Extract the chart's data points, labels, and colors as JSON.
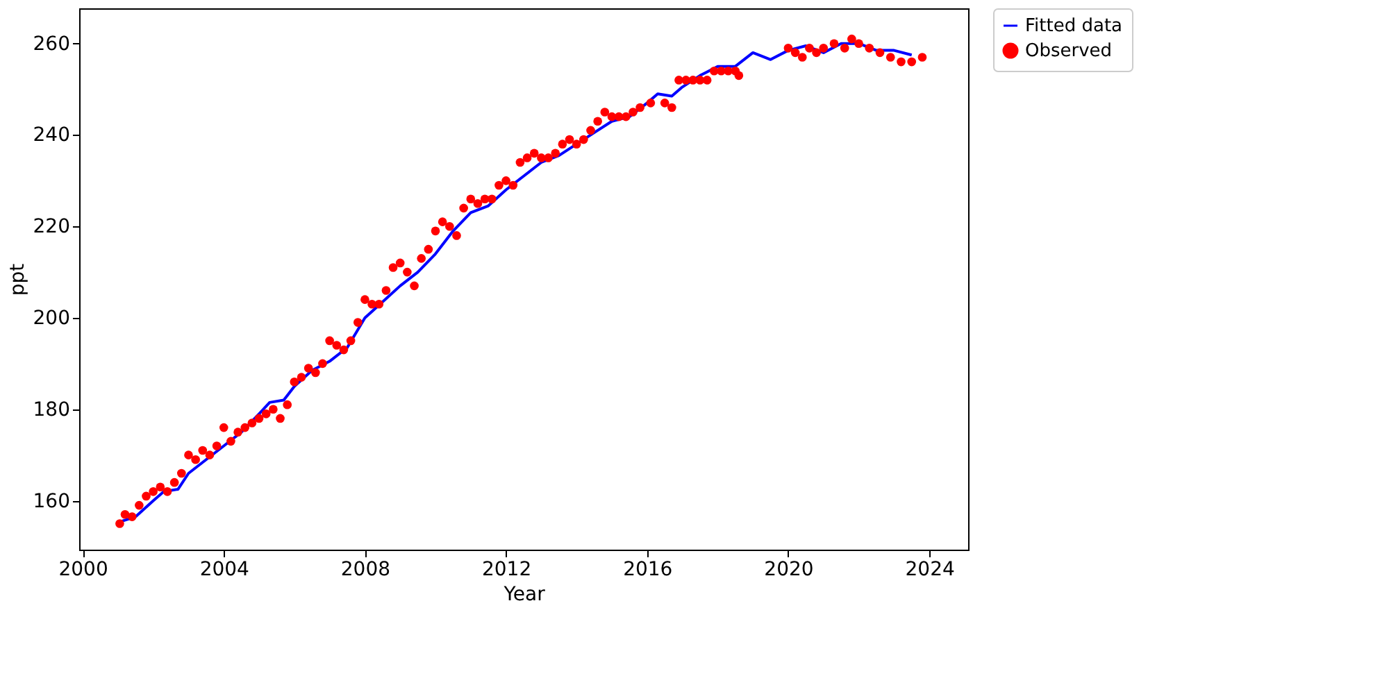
{
  "chart_data": {
    "type": "scatter",
    "xlabel": "Year",
    "ylabel": "ppt",
    "xlim": [
      1999.9,
      2025.1
    ],
    "xticks": [
      2000,
      2004,
      2008,
      2012,
      2016,
      2020,
      2024
    ],
    "ylim": [
      149.3,
      267.7
    ],
    "yticks": [
      160,
      180,
      200,
      220,
      240,
      260
    ],
    "grid": false,
    "legend": "top right",
    "marker": "circle",
    "series": [
      {
        "name": "Fitted data",
        "type": "line",
        "color": "#0000ff",
        "marker": "none",
        "line_style": "solid",
        "x": [
          2001.1,
          2001.5,
          2002,
          2002.3,
          2002.7,
          2003,
          2003.5,
          2004,
          2004.5,
          2005,
          2005.3,
          2005.7,
          2006,
          2006.5,
          2007,
          2007.5,
          2008,
          2008.5,
          2009,
          2009.5,
          2010,
          2010.5,
          2011,
          2011.5,
          2012,
          2012.5,
          2013,
          2013.5,
          2014,
          2014.5,
          2015,
          2015.5,
          2016,
          2016.3,
          2016.7,
          2017,
          2017.5,
          2018,
          2018.5,
          2019,
          2019.5,
          2020,
          2020.5,
          2021,
          2021.5,
          2022,
          2022.5,
          2023,
          2023.5
        ],
        "values": [
          155.5,
          156.5,
          160,
          162,
          162.5,
          166,
          169,
          172,
          175,
          179,
          181.5,
          182,
          185,
          188.5,
          190.5,
          193.5,
          200,
          203.5,
          207,
          210,
          214,
          219,
          223,
          224.5,
          228,
          231,
          234,
          235.5,
          238,
          240.5,
          243,
          244,
          247,
          249,
          248.5,
          250.5,
          253,
          255,
          255,
          258,
          256.5,
          258.5,
          259.5,
          258,
          260,
          260,
          258.5,
          258.5,
          257.5
        ]
      },
      {
        "name": "Observed",
        "color": "#ff0000",
        "x": [
          2001.05,
          2001.2,
          2001.4,
          2001.6,
          2001.8,
          2002.0,
          2002.2,
          2002.4,
          2002.6,
          2002.8,
          2003.0,
          2003.2,
          2003.4,
          2003.6,
          2003.8,
          2004.0,
          2004.2,
          2004.4,
          2004.6,
          2004.8,
          2005.0,
          2005.2,
          2005.4,
          2005.6,
          2005.8,
          2006.0,
          2006.2,
          2006.4,
          2006.6,
          2006.8,
          2007.0,
          2007.2,
          2007.4,
          2007.6,
          2007.8,
          2008.0,
          2008.2,
          2008.4,
          2008.6,
          2008.8,
          2009.0,
          2009.2,
          2009.4,
          2009.6,
          2009.8,
          2010.0,
          2010.2,
          2010.4,
          2010.6,
          2010.8,
          2011.0,
          2011.2,
          2011.4,
          2011.6,
          2011.8,
          2012.0,
          2012.2,
          2012.4,
          2012.6,
          2012.8,
          2013.0,
          2013.2,
          2013.4,
          2013.6,
          2013.8,
          2014.0,
          2014.2,
          2014.4,
          2014.6,
          2014.8,
          2015.0,
          2015.2,
          2015.4,
          2015.6,
          2015.8,
          2016.1,
          2016.5,
          2016.7,
          2016.9,
          2017.1,
          2017.3,
          2017.5,
          2017.7,
          2017.9,
          2018.1,
          2018.3,
          2018.5,
          2018.6,
          2020.0,
          2020.2,
          2020.4,
          2020.6,
          2020.8,
          2021.0,
          2021.3,
          2021.6,
          2021.8,
          2022.0,
          2022.3,
          2022.6,
          2022.9,
          2023.2,
          2023.5,
          2023.8
        ],
        "values": [
          155,
          157,
          156.5,
          159,
          161,
          162,
          163,
          162,
          164,
          166,
          170,
          169,
          171,
          170,
          172,
          176,
          173,
          175,
          176,
          177,
          178,
          179,
          180,
          178,
          181,
          186,
          187,
          189,
          188,
          190,
          195,
          194,
          193,
          195,
          199,
          204,
          203,
          203,
          206,
          211,
          212,
          210,
          207,
          213,
          215,
          219,
          221,
          220,
          218,
          224,
          226,
          225,
          226,
          226,
          229,
          230,
          229,
          234,
          235,
          236,
          235,
          235,
          236,
          238,
          239,
          238,
          239,
          241,
          243,
          245,
          244,
          244,
          244,
          245,
          246,
          247,
          247,
          246,
          252,
          252,
          252,
          252,
          252,
          254,
          254,
          254,
          254,
          253,
          259,
          258,
          257,
          259,
          258,
          259,
          260,
          259,
          261,
          260,
          259,
          258,
          257,
          256,
          256,
          257
        ]
      }
    ]
  }
}
